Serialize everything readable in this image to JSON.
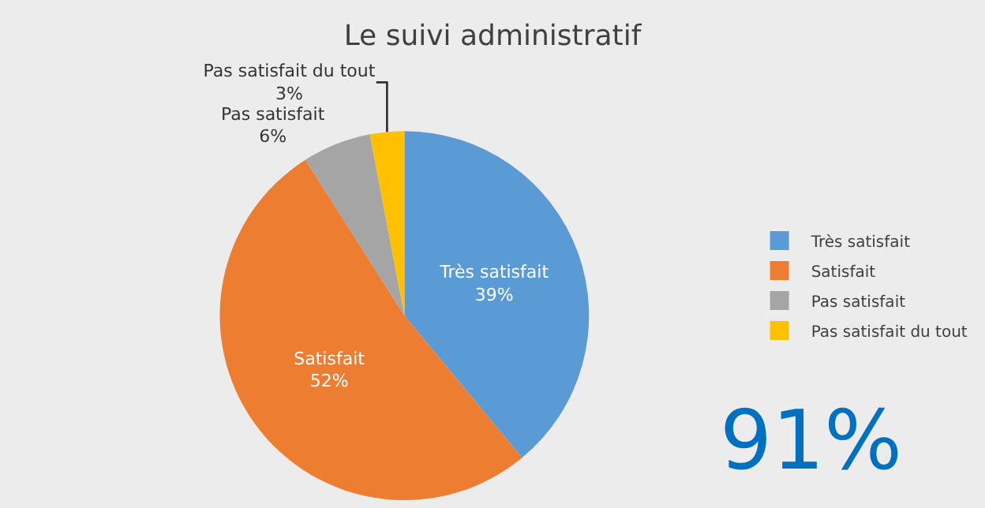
{
  "chart_data": {
    "type": "pie",
    "title": "Le suivi administratif",
    "categories": [
      "Très satisfait",
      "Satisfait",
      "Pas satisfait",
      "Pas satisfait du tout"
    ],
    "values": [
      39,
      52,
      6,
      3
    ],
    "colors": [
      "#5b9bd5",
      "#ed7d31",
      "#a5a5a5",
      "#ffc000"
    ],
    "value_labels": [
      "39%",
      "52%",
      "6%",
      "3%"
    ],
    "legend": "right",
    "annotations": [
      "91%"
    ]
  }
}
